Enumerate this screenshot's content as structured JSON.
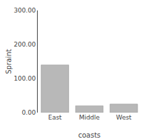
{
  "chart_data": {
    "type": "bar",
    "categories": [
      "East",
      "Middle",
      "West"
    ],
    "values": [
      140,
      20,
      25
    ],
    "xlabel": "coasts",
    "ylabel": "Spraint",
    "color": "#b8b8b8",
    "ylim": [
      0,
      300
    ],
    "yticks": [
      {
        "value": 0,
        "label": "0.00"
      },
      {
        "value": 100,
        "label": "100.00"
      },
      {
        "value": 200,
        "label": "200.00"
      },
      {
        "value": 300,
        "label": "300.00"
      }
    ],
    "grid": false
  }
}
